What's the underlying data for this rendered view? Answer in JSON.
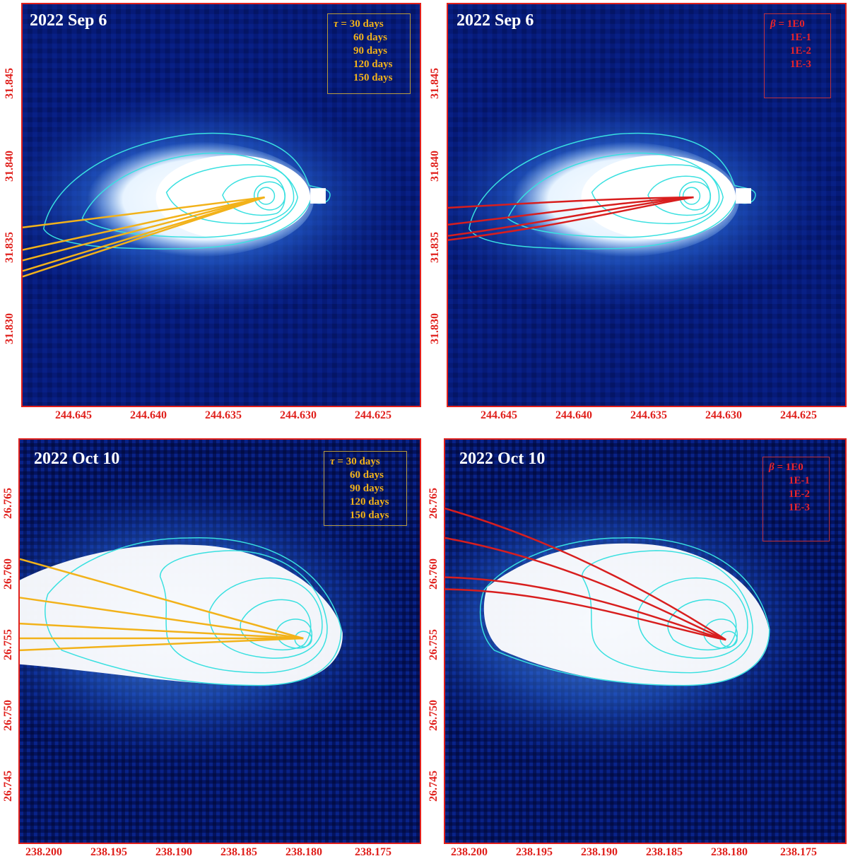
{
  "panels": [
    {
      "id": "p1",
      "date": "2022 Sep 6",
      "legend_type": "tau",
      "legend": [
        {
          "symbol": "τ",
          "eq": "= ",
          "value": "30 days"
        },
        {
          "value": "60 days"
        },
        {
          "value": "90 days"
        },
        {
          "value": "120 days"
        },
        {
          "value": "150 days"
        }
      ],
      "xticks": [
        "244.645",
        "244.640",
        "244.635",
        "244.630",
        "244.625"
      ],
      "yticks": [
        "31.845",
        "31.840",
        "31.835",
        "31.830"
      ]
    },
    {
      "id": "p2",
      "date": "2022 Sep 6",
      "legend_type": "beta",
      "legend": [
        {
          "symbol": "β",
          "eq": " = ",
          "value": "1E0"
        },
        {
          "value": "1E-1"
        },
        {
          "value": "1E-2"
        },
        {
          "value": "1E-3"
        }
      ],
      "xticks": [
        "244.645",
        "244.640",
        "244.635",
        "244.630",
        "244.625"
      ],
      "yticks": [
        "31.845",
        "31.840",
        "31.835",
        "31.830"
      ]
    },
    {
      "id": "p3",
      "date": "2022 Oct 10",
      "legend_type": "tau",
      "legend": [
        {
          "symbol": "τ",
          "eq": " = ",
          "value": "30 days"
        },
        {
          "value": "60 days"
        },
        {
          "value": "90 days"
        },
        {
          "value": "120 days"
        },
        {
          "value": "150 days"
        }
      ],
      "xticks": [
        "238.200",
        "238.195",
        "238.190",
        "238.185",
        "238.180",
        "238.175"
      ],
      "yticks": [
        "26.765",
        "26.760",
        "26.755",
        "26.750",
        "26.745"
      ]
    },
    {
      "id": "p4",
      "date": "2022 Oct 10",
      "legend_type": "beta",
      "legend": [
        {
          "symbol": "β",
          "eq": " = ",
          "value": "1E0"
        },
        {
          "value": "1E-1"
        },
        {
          "value": "1E-2"
        },
        {
          "value": "1E-3"
        }
      ],
      "xticks": [
        "238.200",
        "238.195",
        "238.190",
        "238.185",
        "238.180",
        "238.175"
      ],
      "yticks": [
        "26.765",
        "26.760",
        "26.755",
        "26.750",
        "26.745"
      ]
    }
  ],
  "colors": {
    "axis": "#e0201c",
    "background": "#061a78",
    "coma_core": "#ffffff",
    "coma_glow": "#2f7fe8",
    "contour": "#39e0e0",
    "synchrone": "#f2b21a",
    "syndyne": "#d81e1e"
  }
}
